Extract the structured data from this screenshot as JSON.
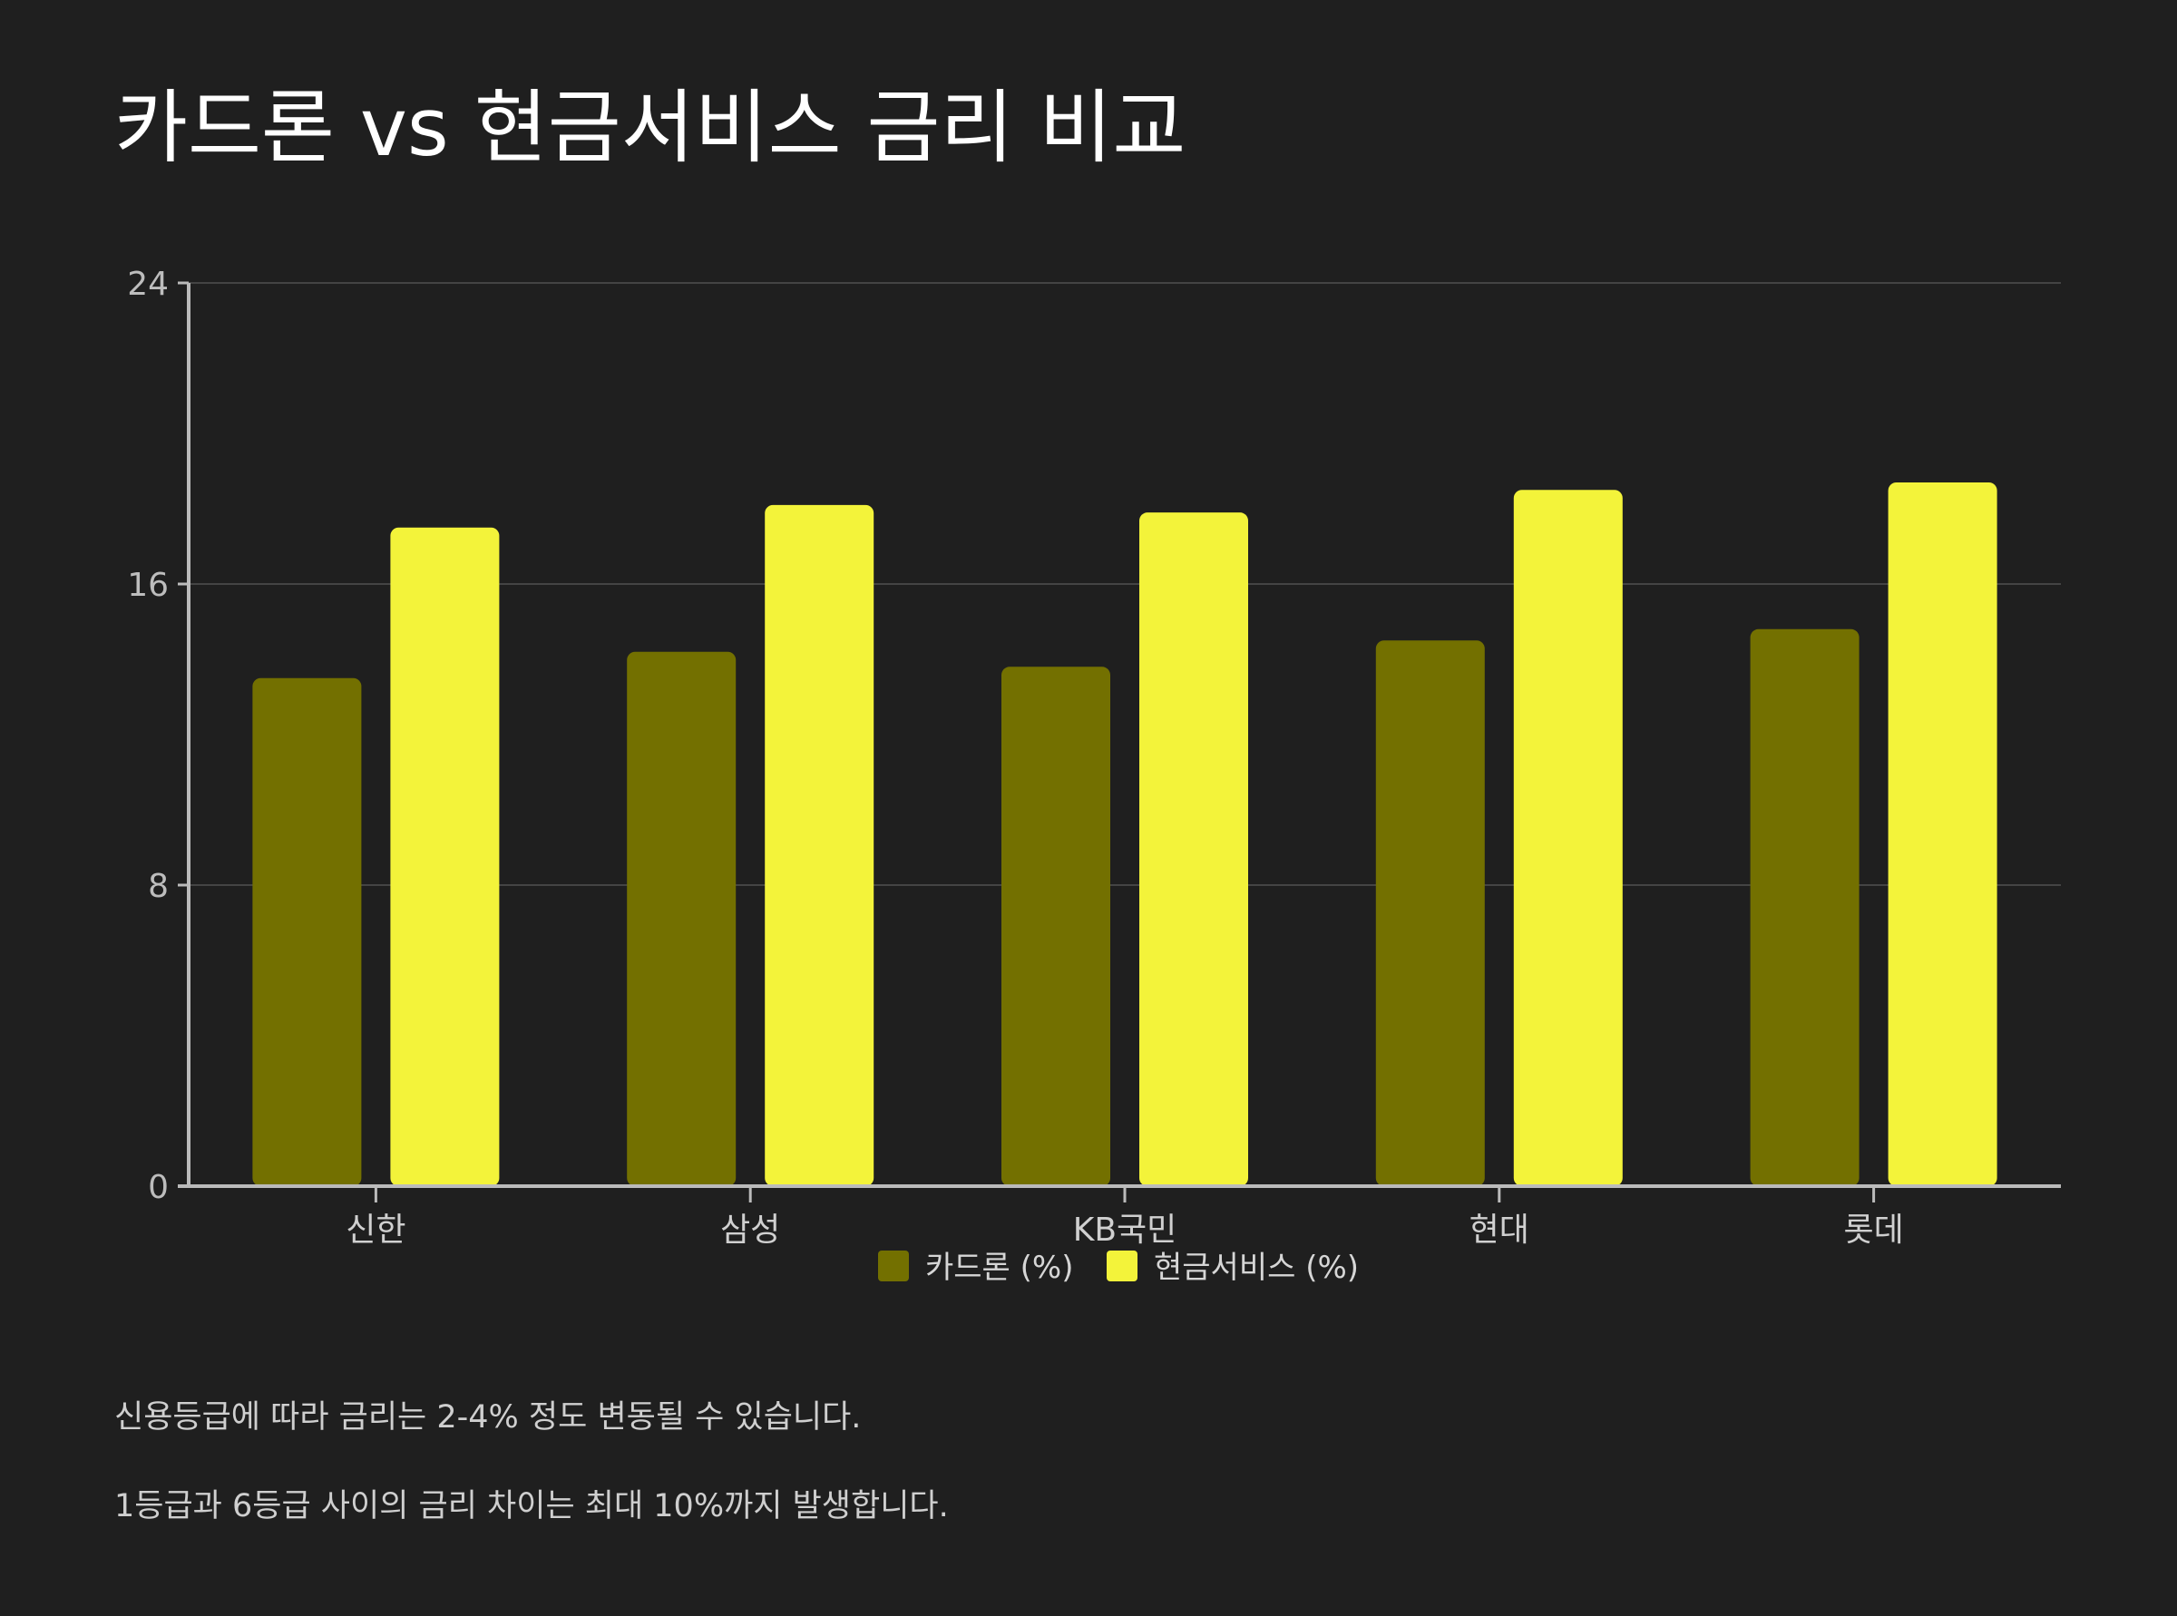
{
  "title": "카드론 vs 현금서비스 금리 비교",
  "chart_data": {
    "type": "bar",
    "categories": [
      "신한",
      "삼성",
      "KB국민",
      "현대",
      "롯데"
    ],
    "series": [
      {
        "name": "카드론 (%)",
        "values": [
          13.5,
          14.2,
          13.8,
          14.5,
          14.8
        ],
        "color": "#737000"
      },
      {
        "name": "현금서비스 (%)",
        "values": [
          17.5,
          18.1,
          17.9,
          18.5,
          18.7
        ],
        "color": "#f3f33a"
      }
    ],
    "ylim": [
      0,
      24
    ],
    "yticks": [
      0,
      8,
      16,
      24
    ],
    "grid": true,
    "legend": "bottom-center"
  },
  "footnotes": [
    "신용등급에 따라 금리는 2-4% 정도 변동될 수 있습니다.",
    "1등급과 6등급 사이의 금리 차이는 최대 10%까지 발생합니다."
  ]
}
